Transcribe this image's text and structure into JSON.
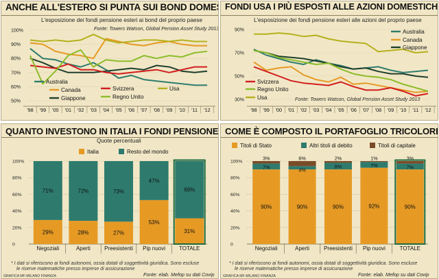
{
  "colors": {
    "panel_bg": "#f1e7c6",
    "teal": "#2e7b6e",
    "orange": "#e69a24",
    "red": "#d21d1d",
    "dark_green": "#1f3f2d",
    "olive": "#b5b01c",
    "light_green": "#8cbc2a",
    "brown": "#7a4b28"
  },
  "chart_data": [
    {
      "type": "line",
      "title": "ANCHE ALL'ESTERO SI PUNTA SUI BOND DOMESTICI",
      "subtitle": "L'esposizione dei fondi pensione esteri ai bond del proprio paese",
      "source": "Fonte: Towers Watson, Global Pension Asset Study 2013",
      "x": [
        "'98",
        "'99",
        "'00",
        "'01",
        "'02",
        "'03",
        "'04",
        "'05",
        "'06",
        "'07",
        "'08",
        "'09",
        "'10",
        "'11",
        "'12"
      ],
      "ylim": [
        50,
        100
      ],
      "yticks": [
        "50%",
        "60%",
        "70%",
        "80%",
        "90%",
        "100%"
      ],
      "series": [
        {
          "name": "Australia",
          "color": "#2e7b6e",
          "values": [
            87,
            80,
            79,
            76,
            74,
            77,
            72,
            66,
            68,
            65,
            64,
            63,
            62,
            61,
            61
          ]
        },
        {
          "name": "Canada",
          "color": "#e69a24",
          "values": [
            91,
            90,
            85,
            83,
            82,
            80,
            94,
            92,
            90,
            89,
            91,
            92,
            90,
            89,
            89
          ]
        },
        {
          "name": "Giappone",
          "color": "#1f3f2d",
          "values": [
            80,
            77,
            73,
            70,
            70,
            70,
            71,
            72,
            73,
            72,
            75,
            74,
            71,
            70,
            71
          ]
        },
        {
          "name": "Svizzera",
          "color": "#d21d1d",
          "values": [
            75,
            74,
            73,
            76,
            72,
            72,
            70,
            69,
            70,
            71,
            72,
            70,
            72,
            74,
            74
          ]
        },
        {
          "name": "Usa",
          "color": "#b5b01c",
          "values": [
            93,
            92,
            93,
            92,
            93,
            97,
            93,
            91,
            92,
            93,
            93,
            92,
            93,
            92,
            92
          ]
        },
        {
          "name": "Regno Unito",
          "color": "#8cbc2a",
          "values": [
            82,
            62,
            71,
            82,
            86,
            74,
            79,
            78,
            78,
            82,
            80,
            82,
            81,
            84,
            85
          ]
        }
      ],
      "legend": [
        "Australia",
        "Svizzera",
        "Usa",
        "Canada",
        "Regno Unito",
        "Giappone"
      ]
    },
    {
      "type": "line",
      "title": "FONDI USA I PIÙ ESPOSTI ALLE AZIONI DOMESTICHE",
      "subtitle": "L'esposizione dei fondi pensione esteri alle azioni del proprio paese",
      "source": "Fonte: Towers Watson, Global Pension Asset Study 2013",
      "x": [
        "'98",
        "'99",
        "'00",
        "'01",
        "'02",
        "'03",
        "'04",
        "'05",
        "'06",
        "'07",
        "'08",
        "'09",
        "'10",
        "'11",
        "'12"
      ],
      "ylim": [
        30,
        90
      ],
      "yticks": [
        "30%",
        "50%",
        "70%",
        "90%"
      ],
      "series": [
        {
          "name": "Australia",
          "color": "#2e7b6e",
          "values": [
            73,
            68,
            65,
            62,
            60,
            64,
            61,
            59,
            56,
            57,
            58,
            55,
            53,
            54,
            55
          ]
        },
        {
          "name": "Canada",
          "color": "#e69a24",
          "values": [
            62,
            55,
            57,
            58,
            51,
            47,
            45,
            49,
            43,
            44,
            42,
            40,
            38,
            36,
            37
          ]
        },
        {
          "name": "Giappone",
          "color": "#1f3f2d",
          "values": [
            72,
            70,
            67,
            66,
            65,
            63,
            61,
            58,
            56,
            57,
            54,
            52,
            52,
            50,
            49
          ]
        },
        {
          "name": "Svizzera",
          "color": "#d21d1d",
          "values": [
            58,
            54,
            50,
            46,
            44,
            43,
            42,
            45,
            41,
            38,
            38,
            40,
            37,
            33,
            35
          ]
        },
        {
          "name": "Regno Unito",
          "color": "#8cbc2a",
          "values": [
            72,
            70,
            66,
            64,
            62,
            60,
            61,
            56,
            52,
            50,
            49,
            47,
            43,
            40,
            37
          ]
        },
        {
          "name": "Usa",
          "color": "#b5b01c",
          "values": [
            86,
            86,
            87,
            86,
            84,
            85,
            82,
            80,
            79,
            78,
            71,
            72,
            73,
            70,
            71
          ]
        }
      ],
      "legend": [
        "Australia",
        "Canada",
        "Giappone",
        "Svizzera",
        "Regno Unito",
        "Usa"
      ]
    },
    {
      "type": "bar",
      "stacked": true,
      "title": "QUANTO INVESTONO IN ITALIA I FONDI PENSIONE",
      "subtitle": "Quote percentuali",
      "categories": [
        "Negoziali",
        "Aperti",
        "Preesistenti",
        "Pip nuovi",
        "TOTALE"
      ],
      "series": [
        {
          "name": "Italia",
          "color": "#e69a24",
          "values": [
            29,
            28,
            27,
            53,
            31
          ]
        },
        {
          "name": "Resto del mondo",
          "color": "#2e7b6e",
          "values": [
            71,
            72,
            73,
            47,
            69
          ]
        }
      ],
      "ylim": [
        0,
        100
      ],
      "yticks": [
        "0",
        "20%",
        "40%",
        "60%",
        "80%",
        "100%"
      ],
      "note_lines": [
        "* I dati si riferiscono ai fondi autonomi, ossia dotati di soggettività giuridica. Sono escluse",
        "le riserve matematiche presso imprese di assicurazione"
      ],
      "source": "Fonte: elab. Mefop su dati Covip",
      "credit": "GRAFICA MF-MILANO FINANZA"
    },
    {
      "type": "bar",
      "stacked": true,
      "title": "COME È COMPOSTO IL PORTAFOGLIO TRICOLORE",
      "categories": [
        "Negoziali",
        "Aperti",
        "Preesistenti",
        "Pip nuovi",
        "TOTALE"
      ],
      "series": [
        {
          "name": "Titoli di Stato",
          "color": "#e69a24",
          "values": [
            90,
            90,
            90,
            92,
            90
          ]
        },
        {
          "name": "Altri titoli di debito",
          "color": "#2e7b6e",
          "values": [
            7,
            4,
            8,
            7,
            7
          ]
        },
        {
          "name": "Titoli di capitale",
          "color": "#7a4b28",
          "values": [
            3,
            6,
            2,
            1,
            3
          ]
        }
      ],
      "ylim": [
        0,
        100
      ],
      "yticks": [
        "0",
        "20%",
        "40%",
        "60%",
        "80%",
        "100%"
      ],
      "note_lines": [
        "* I dati si riferiscono ai fondi autonomi, ossia dotati di soggettività giuridica. Sono escluse",
        "le riserve matematiche presso imprese di assicurazione"
      ],
      "source": "Fonte: elab. Mefop su dati Covip",
      "credit": "GRAFICA MF-MILANO FINANZA"
    }
  ]
}
